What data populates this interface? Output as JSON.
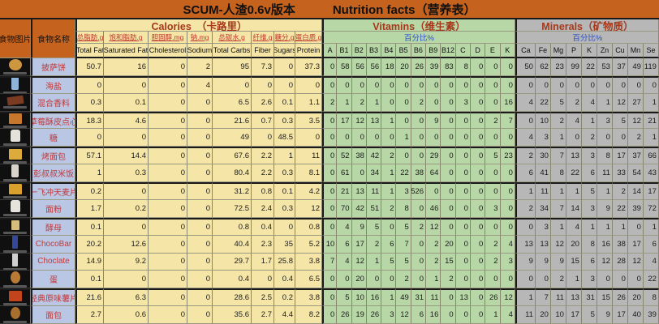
{
  "title_left": "SCUM-人渣0.6v版本",
  "title_right": "Nutrition facts（营养表）",
  "header": {
    "food_image_col": "食物图片",
    "food_name_col": "食物名称",
    "calories": {
      "title": "Calories　（卡路里）",
      "sub_cn": [
        "总脂肪.g",
        "饱和脂肪.g",
        "胆固醇.mg",
        "钠.mg",
        "总碳水.g",
        "纤维.g",
        "糖分.g",
        "蛋白质.g"
      ],
      "sub_en": [
        "Total Fat",
        "Saturated Fat",
        "Cholesterol",
        "Sodium",
        "Total Carbs",
        "Fiber",
        "Sugars",
        "Protein"
      ]
    },
    "vitamins": {
      "title": "Vitamins（维生素）",
      "percent_label": "百分比%",
      "columns": [
        "A",
        "B1",
        "B2",
        "B3",
        "B4",
        "B5",
        "B6",
        "B9",
        "B12",
        "C",
        "D",
        "E",
        "K"
      ]
    },
    "minerals": {
      "title": "Minerals（矿物质）",
      "percent_label": "百分比%",
      "columns": [
        "Ca",
        "Fe",
        "Mg",
        "P",
        "K",
        "Zn",
        "Cu",
        "Mn",
        "Se"
      ]
    }
  },
  "colors": {
    "title_bar": "#c5621d",
    "calories_bg": "#f5e5a6",
    "vitamins_bg": "#b7d7a6",
    "minerals_bg": "#b7b7b7",
    "name_col_bg": "#b9c6e4",
    "name_text": "#c23a3a",
    "percent_text": "#2b50c8",
    "section_title_text": "#a6391c"
  },
  "rows": [
    {
      "name": "披萨饼",
      "calories": [
        50.7,
        16,
        0,
        2,
        95,
        7.3,
        0,
        37.3
      ],
      "vitamins": [
        0,
        58,
        56,
        56,
        18,
        20,
        26,
        39,
        83,
        8,
        0,
        0,
        0
      ],
      "minerals": [
        50,
        62,
        23,
        99,
        22,
        53,
        37,
        49,
        119
      ],
      "image": {
        "icon": "pizza-icon",
        "shape": "circle",
        "color": "#cf9640"
      },
      "group_start": false
    },
    {
      "name": "海盐",
      "calories": [
        0,
        0,
        0,
        4,
        0,
        0,
        0,
        0
      ],
      "vitamins": [
        0,
        0,
        0,
        0,
        0,
        0,
        0,
        0,
        0,
        0,
        0,
        0,
        0
      ],
      "minerals": [
        0,
        0,
        0,
        0,
        0,
        0,
        0,
        0,
        0
      ],
      "image": {
        "icon": "sea-salt-icon",
        "shape": "tall",
        "color": "#8fb4d9"
      },
      "group_start": true
    },
    {
      "name": "混合香料",
      "calories": [
        0.3,
        0.1,
        0,
        0,
        6.5,
        2.6,
        0.1,
        1.1
      ],
      "vitamins": [
        2,
        1,
        2,
        1,
        0,
        0,
        2,
        0,
        0,
        3,
        0,
        0,
        16
      ],
      "minerals": [
        4,
        22,
        5,
        2,
        4,
        1,
        12,
        27,
        1
      ],
      "image": {
        "icon": "spice-mix-icon",
        "shape": "wide",
        "color": "#7a3b22"
      },
      "group_start": false
    },
    {
      "name": "草莓酥皮点心",
      "calories": [
        18.3,
        4.6,
        0,
        0,
        21.6,
        0.7,
        0.3,
        3.5
      ],
      "vitamins": [
        0,
        17,
        12,
        13,
        1,
        0,
        0,
        9,
        0,
        0,
        0,
        2,
        7
      ],
      "minerals": [
        0,
        10,
        2,
        4,
        1,
        3,
        5,
        12,
        21
      ],
      "image": {
        "icon": "strawberry-pastry-icon",
        "shape": "box",
        "color": "#c8782c"
      },
      "group_start": true
    },
    {
      "name": "糖",
      "calories": [
        0,
        0,
        0,
        0,
        49,
        0,
        48.5,
        0
      ],
      "vitamins": [
        0,
        0,
        0,
        0,
        0,
        1,
        0,
        0,
        0,
        0,
        0,
        0,
        0
      ],
      "minerals": [
        4,
        3,
        1,
        0,
        2,
        0,
        0,
        2,
        1
      ],
      "image": {
        "icon": "sugar-icon",
        "shape": "bag",
        "color": "#e4e2da"
      },
      "group_start": false
    },
    {
      "name": "烤面包",
      "calories": [
        57.1,
        14.4,
        0,
        0,
        67.6,
        2.2,
        1,
        11
      ],
      "vitamins": [
        0,
        52,
        38,
        42,
        2,
        0,
        0,
        29,
        0,
        0,
        0,
        5,
        23
      ],
      "minerals": [
        2,
        30,
        7,
        13,
        3,
        8,
        17,
        37,
        66
      ],
      "image": {
        "icon": "toast-icon",
        "shape": "box",
        "color": "#ddaa3c"
      },
      "group_start": true
    },
    {
      "name": "彭叔叔米饭",
      "calories": [
        1,
        0.3,
        0,
        0,
        80.4,
        2.2,
        0.3,
        8.1
      ],
      "vitamins": [
        0,
        61,
        0,
        34,
        1,
        22,
        38,
        64,
        0,
        0,
        0,
        0,
        0
      ],
      "minerals": [
        6,
        41,
        8,
        22,
        6,
        11,
        33,
        54,
        43
      ],
      "image": {
        "icon": "rice-box-icon",
        "shape": "tall",
        "color": "#d8d4cc"
      },
      "group_start": false
    },
    {
      "name": "一飞冲天麦片",
      "calories": [
        0.2,
        0,
        0,
        0,
        31.2,
        0.8,
        0.1,
        4.2
      ],
      "vitamins": [
        0,
        21,
        13,
        11,
        1,
        3,
        526,
        0,
        0,
        0,
        0,
        0,
        0
      ],
      "minerals": [
        1,
        11,
        1,
        1,
        5,
        1,
        2,
        14,
        17
      ],
      "image": {
        "icon": "cereal-box-icon",
        "shape": "box",
        "color": "#d8a02c"
      },
      "group_start": true
    },
    {
      "name": "面粉",
      "calories": [
        1.7,
        0.2,
        0,
        0,
        72.5,
        2.4,
        0.3,
        12
      ],
      "vitamins": [
        0,
        70,
        42,
        51,
        2,
        8,
        0,
        46,
        0,
        0,
        0,
        3,
        0
      ],
      "minerals": [
        2,
        34,
        7,
        14,
        3,
        9,
        22,
        39,
        72
      ],
      "image": {
        "icon": "flour-bag-icon",
        "shape": "bag",
        "color": "#e6e3dc"
      },
      "group_start": false
    },
    {
      "name": "酵母",
      "calories": [
        0.1,
        0,
        0,
        0,
        0.8,
        0.4,
        0,
        0.8
      ],
      "vitamins": [
        0,
        4,
        9,
        5,
        0,
        5,
        2,
        12,
        0,
        0,
        0,
        0,
        0
      ],
      "minerals": [
        0,
        3,
        1,
        4,
        1,
        1,
        1,
        0,
        1
      ],
      "image": {
        "icon": "yeast-packet-icon",
        "shape": "small",
        "color": "#d6bd7c"
      },
      "group_start": true
    },
    {
      "name": "ChocoBar",
      "calories": [
        20.2,
        12.6,
        0,
        0,
        40.4,
        2.3,
        35,
        5.2
      ],
      "vitamins": [
        10,
        6,
        17,
        2,
        6,
        7,
        0,
        2,
        20,
        0,
        0,
        2,
        4
      ],
      "minerals": [
        13,
        13,
        12,
        20,
        8,
        16,
        38,
        17,
        6
      ],
      "image": {
        "icon": "choco-bar-icon",
        "shape": "bar",
        "color": "#35479b"
      },
      "group_start": false
    },
    {
      "name": "Choclate",
      "calories": [
        14.9,
        9.2,
        0,
        0,
        29.7,
        1.7,
        25.8,
        3.8
      ],
      "vitamins": [
        7,
        4,
        12,
        1,
        5,
        5,
        0,
        2,
        15,
        0,
        0,
        2,
        3
      ],
      "minerals": [
        9,
        9,
        9,
        15,
        6,
        12,
        28,
        12,
        4
      ],
      "image": {
        "icon": "chocolate-wrapper-icon",
        "shape": "bar",
        "color": "#cfcfcf"
      },
      "group_start": false
    },
    {
      "name": "蛋",
      "calories": [
        0.1,
        0,
        0,
        0,
        0.4,
        0,
        0.4,
        6.5
      ],
      "vitamins": [
        0,
        0,
        20,
        0,
        0,
        2,
        0,
        1,
        2,
        0,
        0,
        0,
        0
      ],
      "minerals": [
        0,
        0,
        2,
        1,
        3,
        0,
        0,
        0,
        22
      ],
      "image": {
        "icon": "egg-icon",
        "shape": "egg",
        "color": "#b97a36"
      },
      "group_start": false
    },
    {
      "name": "经典原味薯片",
      "calories": [
        21.6,
        6.3,
        0,
        0,
        28.6,
        2.5,
        0.2,
        3.8
      ],
      "vitamins": [
        0,
        5,
        10,
        16,
        1,
        49,
        31,
        11,
        0,
        13,
        0,
        26,
        12
      ],
      "minerals": [
        1,
        7,
        11,
        13,
        31,
        15,
        26,
        20,
        8
      ],
      "image": {
        "icon": "chips-bag-icon",
        "shape": "box",
        "color": "#c2441c"
      },
      "group_start": true
    },
    {
      "name": "面包",
      "calories": [
        2.7,
        0.6,
        0,
        0,
        35.6,
        2.7,
        4.4,
        8.2
      ],
      "vitamins": [
        0,
        26,
        19,
        26,
        3,
        12,
        6,
        16,
        0,
        0,
        0,
        1,
        4
      ],
      "minerals": [
        11,
        20,
        10,
        17,
        5,
        9,
        17,
        40,
        39
      ],
      "image": {
        "icon": "bread-loaf-icon",
        "shape": "egg",
        "color": "#a96f2f"
      },
      "group_start": false
    }
  ]
}
